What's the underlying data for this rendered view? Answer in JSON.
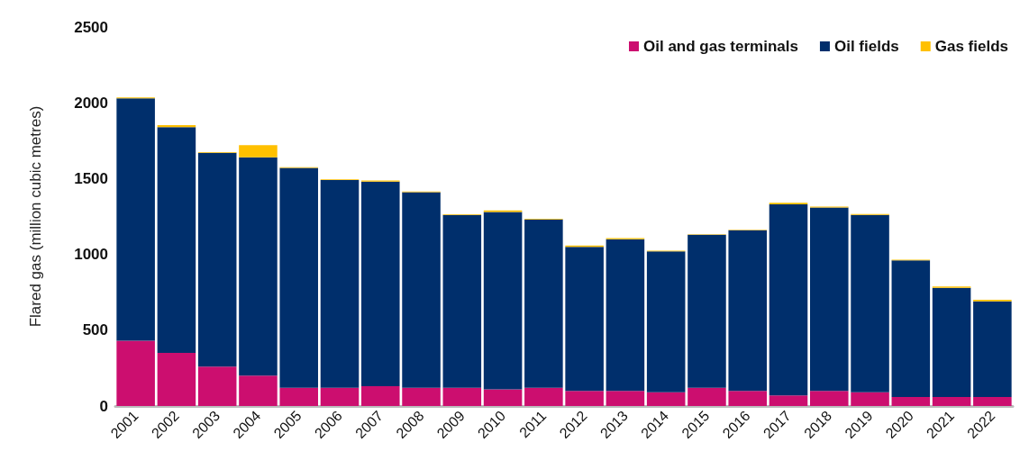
{
  "chart_data": {
    "type": "bar",
    "stacked": true,
    "ylabel": "Flared gas (million cubic metres)",
    "categories": [
      "2001",
      "2002",
      "2003",
      "2004",
      "2005",
      "2006",
      "2007",
      "2008",
      "2009",
      "2010",
      "2011",
      "2012",
      "2013",
      "2014",
      "2015",
      "2016",
      "2017",
      "2018",
      "2019",
      "2020",
      "2021",
      "2022"
    ],
    "series": [
      {
        "name": "Oil and gas terminals",
        "color": "#cc0e6f",
        "values": [
          430,
          350,
          260,
          200,
          120,
          120,
          130,
          120,
          120,
          110,
          120,
          100,
          100,
          90,
          120,
          100,
          70,
          100,
          90,
          60,
          60,
          60
        ]
      },
      {
        "name": "Oil fields",
        "color": "#002f6c",
        "values": [
          1600,
          1490,
          1410,
          1440,
          1450,
          1370,
          1350,
          1290,
          1140,
          1170,
          1110,
          950,
          1000,
          930,
          1010,
          1060,
          1260,
          1210,
          1170,
          900,
          720,
          630
        ]
      },
      {
        "name": "Gas fields",
        "color": "#ffc000",
        "values": [
          5,
          12,
          5,
          80,
          5,
          5,
          8,
          5,
          5,
          10,
          5,
          8,
          8,
          5,
          3,
          3,
          10,
          6,
          6,
          5,
          8,
          10
        ]
      }
    ],
    "ylim": [
      0,
      2500
    ],
    "yticks": [
      0,
      500,
      1000,
      1500,
      2000,
      2500
    ],
    "grid": false,
    "legend": "top right"
  }
}
